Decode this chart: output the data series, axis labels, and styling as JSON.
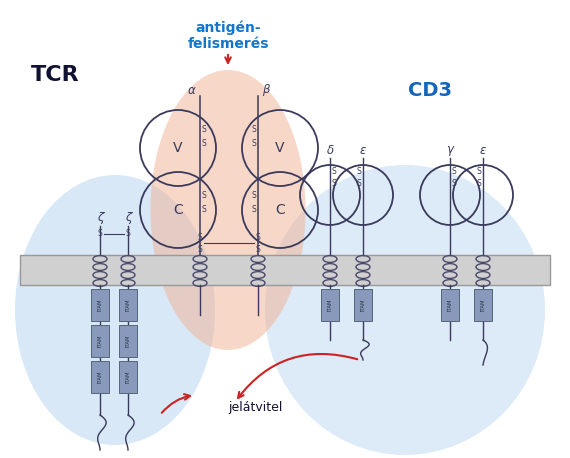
{
  "bg_color": "#ffffff",
  "tcr_label": "TCR",
  "cd3_label": "CD3",
  "antigen_line1": "antigén-",
  "antigen_line2": "felismerés",
  "jelatvitel_label": "jelátvitel",
  "chain_color": "#3a3a5c",
  "coil_color": "#4a4a6a",
  "itam_color": "#8899bb",
  "itam_edge": "#556677",
  "s_color": "#3a3a5c",
  "circle_color": "#3a3a5c",
  "tcr_text_color": "#111133",
  "cd3_text_color": "#1166bb",
  "antigen_text_color": "#1177cc",
  "arrow_color": "#cc2222",
  "blue_blob_color": "#aaccee",
  "red_blob_color": "#f0b090",
  "mem_face": "#d0d0d0",
  "mem_edge": "#999999"
}
